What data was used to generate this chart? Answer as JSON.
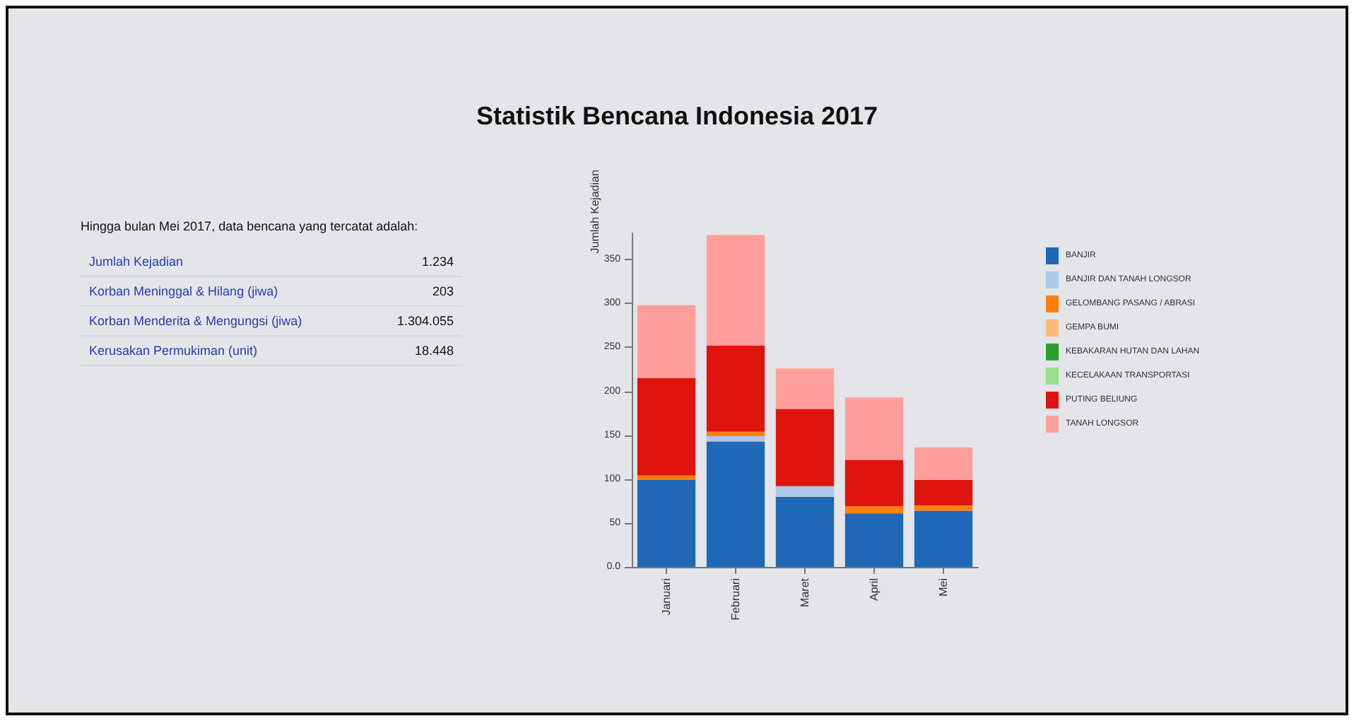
{
  "chart_data": {
    "type": "bar",
    "title": "Statistik Bencana Indonesia 2017",
    "ylabel": "Jumlah Kejadian",
    "stacked": true,
    "legend": "right",
    "grid": false,
    "categories": [
      "Januari",
      "Februari",
      "Maret",
      "April",
      "Mei"
    ],
    "ylim": [
      0,
      380
    ],
    "yticks": [
      {
        "value": 0,
        "label": "0.0"
      },
      50,
      100,
      150,
      200,
      250,
      300,
      350
    ],
    "series": [
      {
        "name": "BANJIR",
        "color": "#1f68b8",
        "values": [
          99,
          143,
          80,
          61,
          64
        ]
      },
      {
        "name": "BANJIR DAN TANAH LONGSOR",
        "color": "#aec7e8",
        "values": [
          0,
          6,
          12,
          0,
          0
        ]
      },
      {
        "name": "GELOMBANG PASANG / ABRASI",
        "color": "#ff7f0e",
        "values": [
          5,
          5,
          0,
          8,
          6
        ]
      },
      {
        "name": "GEMPA BUMI",
        "color": "#ffbb78",
        "values": [
          0,
          0,
          0,
          0,
          0
        ]
      },
      {
        "name": "KEBAKARAN HUTAN DAN LAHAN",
        "color": "#2ca02c",
        "values": [
          0,
          0,
          0,
          0,
          0
        ]
      },
      {
        "name": "KECELAKAAN TRANSPORTASI",
        "color": "#98df8a",
        "values": [
          0,
          0,
          0,
          0,
          0
        ]
      },
      {
        "name": "PUTING BELIUNG",
        "color": "#e0140f",
        "values": [
          111,
          98,
          88,
          53,
          29
        ]
      },
      {
        "name": "TANAH LONGSOR",
        "color": "#ff9e9a",
        "values": [
          83,
          126,
          46,
          71,
          37
        ]
      }
    ],
    "annotations": [
      "Hingga bulan Mei 2017, data bencana yang tercatat adalah:",
      "Jumlah Kejadian",
      "1.234",
      "Korban Meninggal & Hilang (jiwa)",
      "203",
      "Korban Menderita & Mengungsi (jiwa)",
      "1.304.055",
      "Kerusakan Permukiman (unit)",
      "18.448"
    ]
  }
}
